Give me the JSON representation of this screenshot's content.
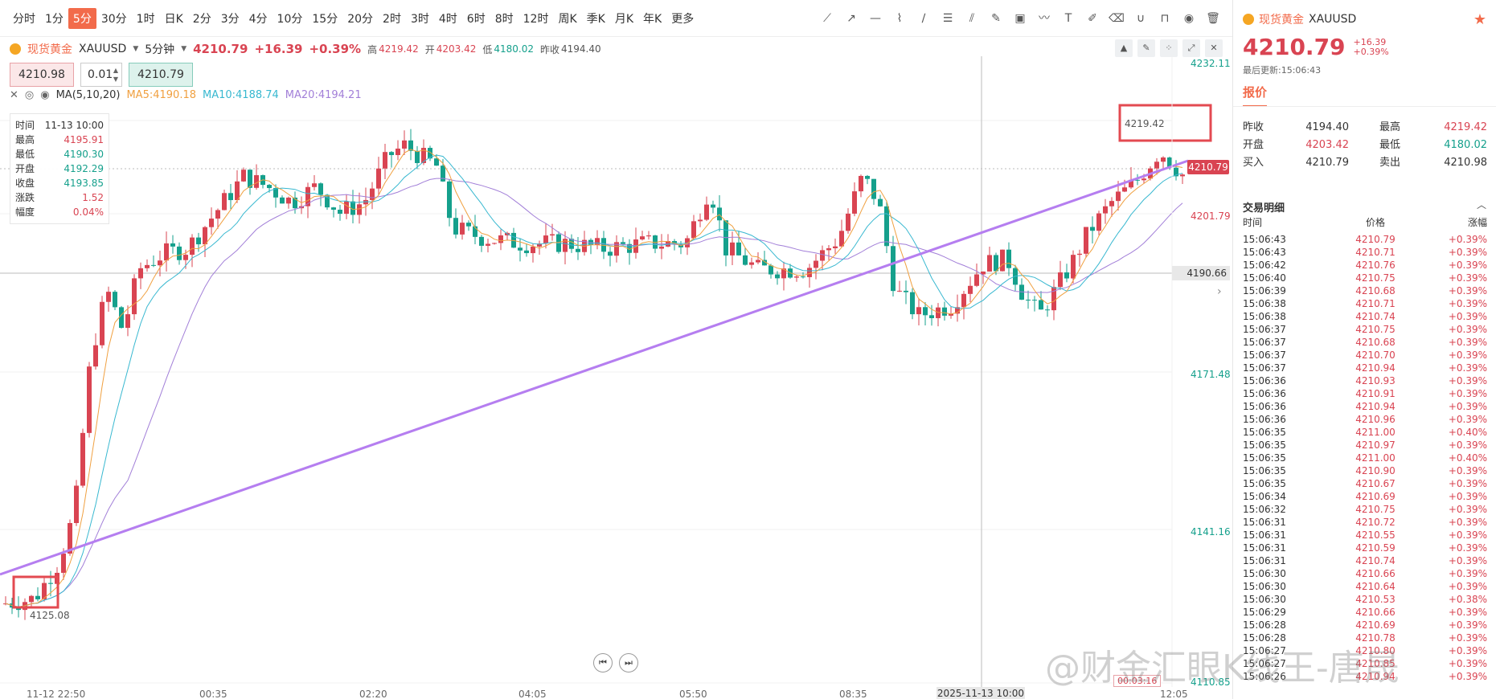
{
  "toolbar": {
    "intervals": [
      "分时",
      "1分",
      "5分",
      "30分",
      "1时",
      "日K",
      "2分",
      "3分",
      "4分",
      "10分",
      "15分",
      "20分",
      "2时",
      "3时",
      "4时",
      "6时",
      "8时",
      "12时",
      "周K",
      "季K",
      "月K",
      "年K",
      "更多"
    ],
    "active_interval": "5分",
    "draw_tools": [
      "trend-line-icon",
      "ray-icon",
      "horizontal-line-icon",
      "polyline-icon",
      "brush-icon",
      "fib-icon",
      "fan-icon",
      "pen-icon",
      "image-icon",
      "wave-icon",
      "text-icon",
      "note-icon",
      "eraser-icon",
      "magnet-icon",
      "lock-icon",
      "eye-icon",
      "trash-icon"
    ]
  },
  "symbol": {
    "name": "现货黄金",
    "code": "XAUUSD",
    "period": "5分钟",
    "last": "4210.79",
    "change": "+16.39",
    "change_pct": "+0.39%",
    "high_label": "高",
    "high": "4219.42",
    "open_label": "开",
    "open": "4203.42",
    "low_label": "低",
    "low": "4180.02",
    "prev_label": "昨收",
    "prev": "4194.40"
  },
  "order": {
    "sell_price": "4210.98",
    "qty": "0.01",
    "buy_price": "4210.79"
  },
  "ma": {
    "label": "MA(5,10,20)",
    "ma5": "MA5:4190.18",
    "ma10": "MA10:4188.74",
    "ma20": "MA20:4194.21",
    "colors": {
      "ma5": "#f0a040",
      "ma10": "#38b8d0",
      "ma20": "#a27fd8"
    }
  },
  "info_panel": [
    {
      "label": "时间",
      "value": "11-13 10:00",
      "color": "#333333"
    },
    {
      "label": "最高",
      "value": "4195.91",
      "color": "#d94452"
    },
    {
      "label": "最低",
      "value": "4190.30",
      "color": "#15a08c"
    },
    {
      "label": "开盘",
      "value": "4192.29",
      "color": "#15a08c"
    },
    {
      "label": "收盘",
      "value": "4193.85",
      "color": "#15a08c"
    },
    {
      "label": "涨跌",
      "value": "1.52",
      "color": "#d94452"
    },
    {
      "label": "幅度",
      "value": "0.04%",
      "color": "#d94452"
    }
  ],
  "axis": {
    "y_ticks": [
      "4232.11",
      "4201.79",
      "4171.48",
      "4141.16",
      "4110.85"
    ],
    "last_price_tag": "4210.79",
    "crosshair_price": "4190.66",
    "high_marker": "4219.42",
    "low_marker": "4125.08",
    "x_ticks": [
      "11-12 22:50",
      "00:35",
      "02:20",
      "04:05",
      "05:50",
      "08:35",
      "12:05"
    ],
    "crosshair_time": "2025-11-13 10:00",
    "countdown": "00:03:16"
  },
  "right_panel": {
    "title": "现货黄金",
    "code": "XAUUSD",
    "price": "4210.79",
    "change": "+16.39",
    "change_pct": "+0.39%",
    "update": "最后更新:15:06:43",
    "tab": "报价",
    "quote": [
      {
        "l1": "昨收",
        "v1": "4194.40",
        "c1": "#333333",
        "l2": "最高",
        "v2": "4219.42",
        "c2": "#d94452"
      },
      {
        "l1": "开盘",
        "v1": "4203.42",
        "c1": "#d94452",
        "l2": "最低",
        "v2": "4180.02",
        "c2": "#15a08c"
      },
      {
        "l1": "买入",
        "v1": "4210.79",
        "c1": "#333333",
        "l2": "卖出",
        "v2": "4210.98",
        "c2": "#333333"
      }
    ],
    "trades_title": "交易明细",
    "trades_header": [
      "时间",
      "价格",
      "涨幅"
    ],
    "trades": [
      [
        "15:06:43",
        "4210.79",
        "+0.39%"
      ],
      [
        "15:06:43",
        "4210.71",
        "+0.39%"
      ],
      [
        "15:06:42",
        "4210.76",
        "+0.39%"
      ],
      [
        "15:06:40",
        "4210.75",
        "+0.39%"
      ],
      [
        "15:06:39",
        "4210.68",
        "+0.39%"
      ],
      [
        "15:06:38",
        "4210.71",
        "+0.39%"
      ],
      [
        "15:06:38",
        "4210.74",
        "+0.39%"
      ],
      [
        "15:06:37",
        "4210.75",
        "+0.39%"
      ],
      [
        "15:06:37",
        "4210.68",
        "+0.39%"
      ],
      [
        "15:06:37",
        "4210.70",
        "+0.39%"
      ],
      [
        "15:06:37",
        "4210.94",
        "+0.39%"
      ],
      [
        "15:06:36",
        "4210.93",
        "+0.39%"
      ],
      [
        "15:06:36",
        "4210.91",
        "+0.39%"
      ],
      [
        "15:06:36",
        "4210.94",
        "+0.39%"
      ],
      [
        "15:06:36",
        "4210.96",
        "+0.39%"
      ],
      [
        "15:06:35",
        "4211.00",
        "+0.40%"
      ],
      [
        "15:06:35",
        "4210.97",
        "+0.39%"
      ],
      [
        "15:06:35",
        "4211.00",
        "+0.40%"
      ],
      [
        "15:06:35",
        "4210.90",
        "+0.39%"
      ],
      [
        "15:06:35",
        "4210.67",
        "+0.39%"
      ],
      [
        "15:06:34",
        "4210.69",
        "+0.39%"
      ],
      [
        "15:06:32",
        "4210.75",
        "+0.39%"
      ],
      [
        "15:06:31",
        "4210.72",
        "+0.39%"
      ],
      [
        "15:06:31",
        "4210.55",
        "+0.39%"
      ],
      [
        "15:06:31",
        "4210.59",
        "+0.39%"
      ],
      [
        "15:06:31",
        "4210.74",
        "+0.39%"
      ],
      [
        "15:06:30",
        "4210.66",
        "+0.39%"
      ],
      [
        "15:06:30",
        "4210.64",
        "+0.39%"
      ],
      [
        "15:06:30",
        "4210.53",
        "+0.38%"
      ],
      [
        "15:06:29",
        "4210.66",
        "+0.39%"
      ],
      [
        "15:06:28",
        "4210.69",
        "+0.39%"
      ],
      [
        "15:06:28",
        "4210.78",
        "+0.39%"
      ],
      [
        "15:06:27",
        "4210.80",
        "+0.39%"
      ],
      [
        "15:06:27",
        "4210.85",
        "+0.39%"
      ],
      [
        "15:06:26",
        "4210.94",
        "+0.39%"
      ]
    ]
  },
  "watermark": "@财金汇眼K线王-唐晟",
  "colors": {
    "up": "#d94452",
    "down": "#15a08c",
    "accent": "#f26b4b",
    "trendline": "#b57ef0"
  }
}
